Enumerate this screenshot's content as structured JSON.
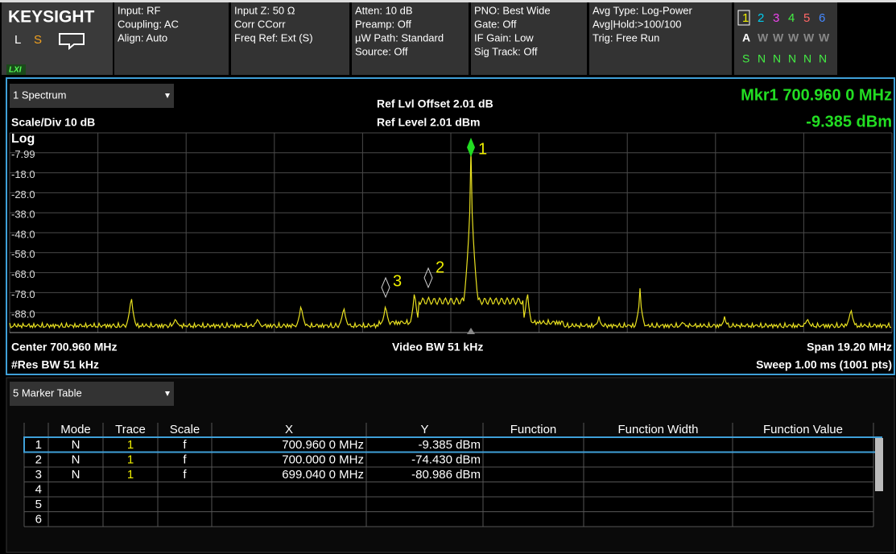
{
  "header": {
    "logo": "KEYSIGHT",
    "mode_letters": [
      "L",
      "S"
    ],
    "lxi": "LXI",
    "panels": [
      [
        "Input: RF",
        "Coupling: AC",
        "Align: Auto"
      ],
      [
        "Input Z: 50 Ω",
        "Corr CCorr",
        "Freq Ref: Ext (S)"
      ],
      [
        "Atten: 10 dB",
        "Preamp: Off",
        "µW Path: Standard",
        "Source: Off"
      ],
      [
        "PNO: Best Wide",
        "Gate: Off",
        "IF Gain: Low",
        "Sig Track: Off"
      ],
      [
        "Avg Type: Log-Power",
        "Avg|Hold:>100/100",
        "Trig: Free Run"
      ]
    ],
    "traces": {
      "numbers": [
        "1",
        "2",
        "3",
        "4",
        "5",
        "6"
      ],
      "types": [
        "A",
        "W",
        "W",
        "W",
        "W",
        "W"
      ],
      "detectors": [
        "S",
        "N",
        "N",
        "N",
        "N",
        "N"
      ]
    }
  },
  "spectrum": {
    "window_title": "1 Spectrum",
    "ref_offset": "Ref Lvl Offset 2.01 dB",
    "ref_level": "Ref Level 2.01 dBm",
    "scale": "Scale/Div 10 dB",
    "log": "Log",
    "marker_readout": "Mkr1  700.960 0 MHz",
    "marker_value": "-9.385 dBm",
    "y_labels": [
      "-7.99",
      "-18.0",
      "-28.0",
      "-38.0",
      "-48.0",
      "-58.0",
      "-68.0",
      "-78.0",
      "-88.0"
    ],
    "marker_labels": [
      "1",
      "2",
      "3"
    ],
    "center": "Center 700.960 MHz",
    "res_bw": "#Res BW 51 kHz",
    "video_bw": "Video BW 51 kHz",
    "span": "Span 19.20 MHz",
    "sweep": "Sweep 1.00 ms (1001 pts)"
  },
  "marker_table": {
    "window_title": "5 Marker Table",
    "columns": [
      "Mode",
      "Trace",
      "Scale",
      "X",
      "Y",
      "Function",
      "Function Width",
      "Function Value"
    ],
    "rows": [
      {
        "n": "1",
        "mode": "N",
        "trace": "1",
        "scale": "f",
        "x": "700.960 0 MHz",
        "y": "-9.385 dBm"
      },
      {
        "n": "2",
        "mode": "N",
        "trace": "1",
        "scale": "f",
        "x": "700.000 0 MHz",
        "y": "-74.430 dBm"
      },
      {
        "n": "3",
        "mode": "N",
        "trace": "1",
        "scale": "f",
        "x": "699.040 0 MHz",
        "y": "-80.986 dBm"
      },
      {
        "n": "4"
      },
      {
        "n": "5"
      },
      {
        "n": "6"
      }
    ]
  }
}
